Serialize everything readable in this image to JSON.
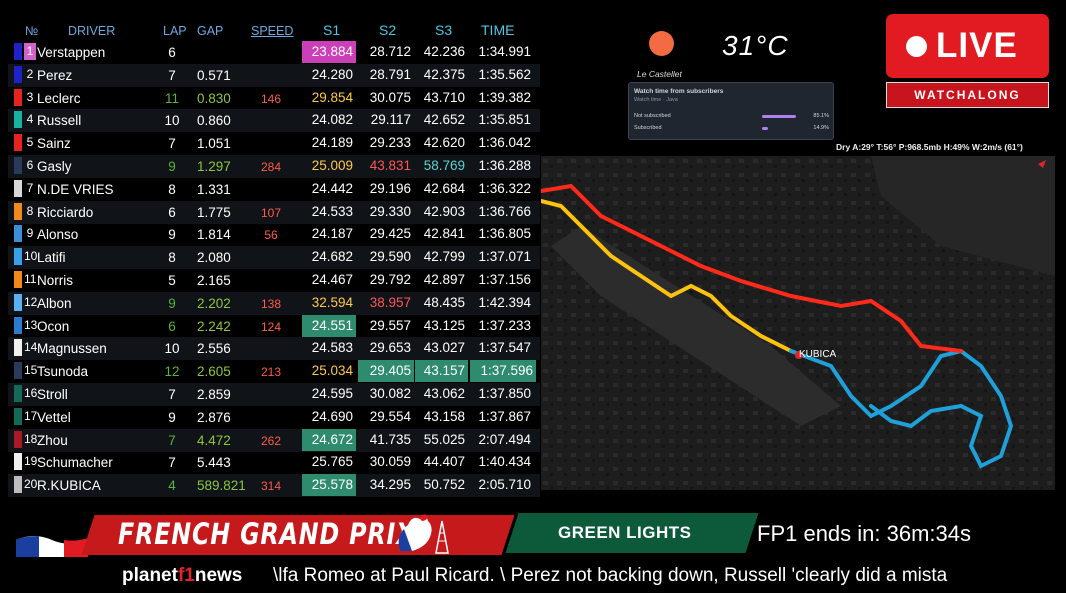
{
  "timing": {
    "headers": {
      "no": "№",
      "driver": "DRIVER",
      "lap": "LAP",
      "gap": "GAP",
      "speed": "SPEED",
      "s1": "S1",
      "s2": "S2",
      "s3": "S3",
      "time": "TIME"
    },
    "rows": [
      {
        "pos": "1",
        "name": "Verstappen",
        "lap": "6",
        "gap": "",
        "speed": "",
        "s1": "23.884",
        "s2": "28.712",
        "s3": "42.236",
        "time": "1:34.991",
        "team_color": "#1e22c8"
      },
      {
        "pos": "2",
        "name": "Perez",
        "lap": "7",
        "gap": "0.571",
        "speed": "",
        "s1": "24.280",
        "s2": "28.791",
        "s3": "42.375",
        "time": "1:35.562",
        "team_color": "#1e22c8"
      },
      {
        "pos": "3",
        "name": "Leclerc",
        "lap": "11",
        "gap": "0.830",
        "speed": "146",
        "s1": "29.854",
        "s2": "30.075",
        "s3": "43.710",
        "time": "1:39.382",
        "team_color": "#e8231f"
      },
      {
        "pos": "4",
        "name": "Russell",
        "lap": "10",
        "gap": "0.860",
        "speed": "",
        "s1": "24.082",
        "s2": "29.117",
        "s3": "42.652",
        "time": "1:35.851",
        "team_color": "#1ab3a0"
      },
      {
        "pos": "5",
        "name": "Sainz",
        "lap": "7",
        "gap": "1.051",
        "speed": "",
        "s1": "24.189",
        "s2": "29.233",
        "s3": "42.620",
        "time": "1:36.042",
        "team_color": "#e8231f"
      },
      {
        "pos": "6",
        "name": "Gasly",
        "lap": "9",
        "gap": "1.297",
        "speed": "284",
        "s1": "25.009",
        "s2": "43.831",
        "s3": "58.769",
        "time": "1:36.288",
        "team_color": "#2a3a5a"
      },
      {
        "pos": "7",
        "name": "N.DE VRIES",
        "lap": "8",
        "gap": "1.331",
        "speed": "",
        "s1": "24.442",
        "s2": "29.196",
        "s3": "42.684",
        "time": "1:36.322",
        "team_color": "#d8d8d8"
      },
      {
        "pos": "8",
        "name": "Ricciardo",
        "lap": "6",
        "gap": "1.775",
        "speed": "107",
        "s1": "24.533",
        "s2": "29.330",
        "s3": "42.903",
        "time": "1:36.766",
        "team_color": "#f08a1c"
      },
      {
        "pos": "9",
        "name": "Alonso",
        "lap": "9",
        "gap": "1.814",
        "speed": "56",
        "s1": "24.187",
        "s2": "29.425",
        "s3": "42.841",
        "time": "1:36.805",
        "team_color": "#3a8fd8"
      },
      {
        "pos": "10",
        "name": "Latifi",
        "lap": "8",
        "gap": "2.080",
        "speed": "",
        "s1": "24.682",
        "s2": "29.590",
        "s3": "42.799",
        "time": "1:37.071",
        "team_color": "#3aa0e8"
      },
      {
        "pos": "11",
        "name": "Norris",
        "lap": "5",
        "gap": "2.165",
        "speed": "",
        "s1": "24.467",
        "s2": "29.792",
        "s3": "42.897",
        "time": "1:37.156",
        "team_color": "#f08a1c"
      },
      {
        "pos": "12",
        "name": "Albon",
        "lap": "9",
        "gap": "2.202",
        "speed": "138",
        "s1": "32.594",
        "s2": "38.957",
        "s3": "48.435",
        "time": "1:42.394",
        "team_color": "#5ab0f0"
      },
      {
        "pos": "13",
        "name": "Ocon",
        "lap": "6",
        "gap": "2.242",
        "speed": "124",
        "s1": "24.551",
        "s2": "29.557",
        "s3": "43.125",
        "time": "1:37.233",
        "team_color": "#2a7ad0"
      },
      {
        "pos": "14",
        "name": "Magnussen",
        "lap": "10",
        "gap": "2.556",
        "speed": "",
        "s1": "24.583",
        "s2": "29.653",
        "s3": "43.027",
        "time": "1:37.547",
        "team_color": "#f0f0f0"
      },
      {
        "pos": "15",
        "name": "Tsunoda",
        "lap": "12",
        "gap": "2.605",
        "speed": "213",
        "s1": "25.034",
        "s2": "29.405",
        "s3": "43.157",
        "time": "1:37.596",
        "team_color": "#2a3a5a"
      },
      {
        "pos": "16",
        "name": "Stroll",
        "lap": "7",
        "gap": "2.859",
        "speed": "",
        "s1": "24.595",
        "s2": "30.082",
        "s3": "43.062",
        "time": "1:37.850",
        "team_color": "#146a58"
      },
      {
        "pos": "17",
        "name": "Vettel",
        "lap": "9",
        "gap": "2.876",
        "speed": "",
        "s1": "24.690",
        "s2": "29.554",
        "s3": "43.158",
        "time": "1:37.867",
        "team_color": "#146a58"
      },
      {
        "pos": "18",
        "name": "Zhou",
        "lap": "7",
        "gap": "4.472",
        "speed": "262",
        "s1": "24.672",
        "s2": "41.735",
        "s3": "55.025",
        "time": "2:07.494",
        "team_color": "#a81a2a"
      },
      {
        "pos": "19",
        "name": "Schumacher",
        "lap": "7",
        "gap": "5.443",
        "speed": "",
        "s1": "25.765",
        "s2": "30.059",
        "s3": "44.407",
        "time": "1:40.434",
        "team_color": "#f0f0f0"
      },
      {
        "pos": "20",
        "name": "R.KUBICA",
        "lap": "4",
        "gap": "589.821",
        "speed": "314",
        "s1": "25.578",
        "s2": "34.295",
        "s3": "50.752",
        "time": "2:05.710",
        "team_color": "#bdbdbd"
      }
    ]
  },
  "weather": {
    "temperature": "31°C",
    "circuit": "Le Castellet",
    "details": "Dry A:29° T:56° P:968.5mb H:49% W:2m/s (61°)"
  },
  "subscribers_panel": {
    "title": "Watch time from subscribers",
    "subtitle": "Watch time · Java",
    "rows": [
      {
        "label": "Not subscribed",
        "value": "85.1%",
        "fraction": 0.851
      },
      {
        "label": "Subscribed",
        "value": "14.9%",
        "fraction": 0.149
      }
    ]
  },
  "live": {
    "label": "LIVE",
    "sub": "WATCHALONG"
  },
  "map": {
    "label": "KUBICA"
  },
  "ticker": {
    "event": "FRENCH GRAND PRIX",
    "status": "GREEN LIGHTS",
    "countdown": "FP1 ends in: 36m:34s",
    "brand_a": "planet",
    "brand_b": "f1",
    "brand_c": "news",
    "news": "\\lfa Romeo at Paul Ricard.  \\  Perez not backing down, Russell 'clearly did a mista"
  },
  "colors": {
    "live_red": "#e21b22",
    "gp_red": "#c6191c",
    "green_lights": "#0d5a3a",
    "purple": "#cc3fb9",
    "green_cell": "#2e8b6e"
  }
}
